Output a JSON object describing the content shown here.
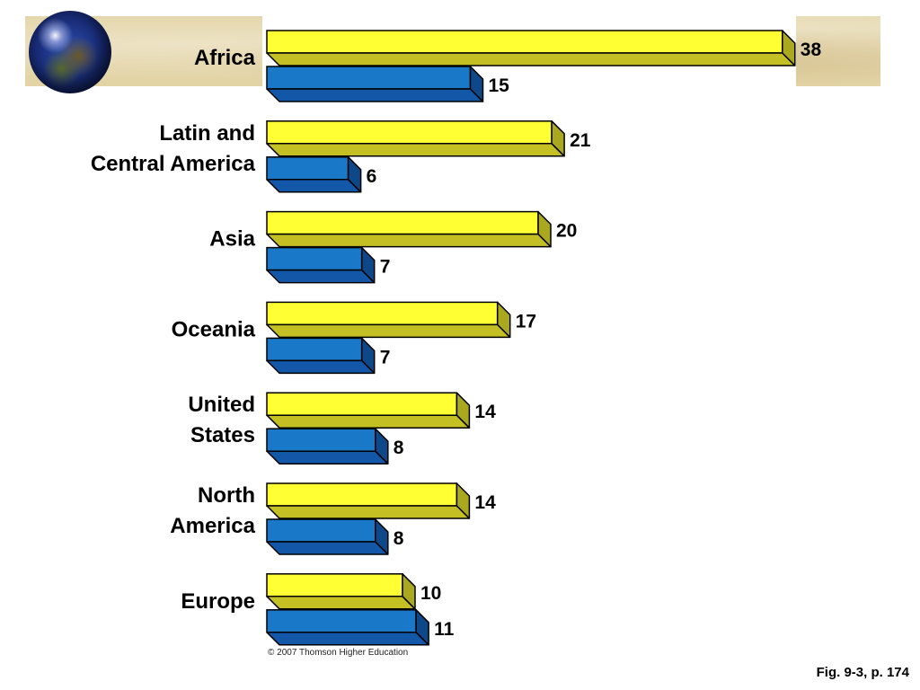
{
  "chart_data": {
    "type": "bar",
    "orientation": "horizontal",
    "categories": [
      [
        "Africa"
      ],
      [
        "Latin and",
        "Central America"
      ],
      [
        "Asia"
      ],
      [
        "Oceania"
      ],
      [
        "United",
        "States"
      ],
      [
        "North",
        "America"
      ],
      [
        "Europe"
      ]
    ],
    "series": [
      {
        "values": [
          38,
          21,
          20,
          17,
          14,
          14,
          10
        ]
      },
      {
        "values": [
          15,
          6,
          7,
          7,
          8,
          8,
          11
        ]
      }
    ],
    "colors": {
      "series_1": {
        "front": "#ffff33",
        "shade": "#c4c024",
        "end": "#aaa81e"
      },
      "series_2": {
        "front": "#1a78c8",
        "shade": "#1358a8",
        "end": "#0e4888"
      }
    },
    "xlim": [
      0,
      40
    ],
    "legend": "none",
    "grid": false
  },
  "footer": {
    "copyright": "© 2007 Thomson Higher Education",
    "figure_ref": "Fig. 9-3, p. 174"
  }
}
